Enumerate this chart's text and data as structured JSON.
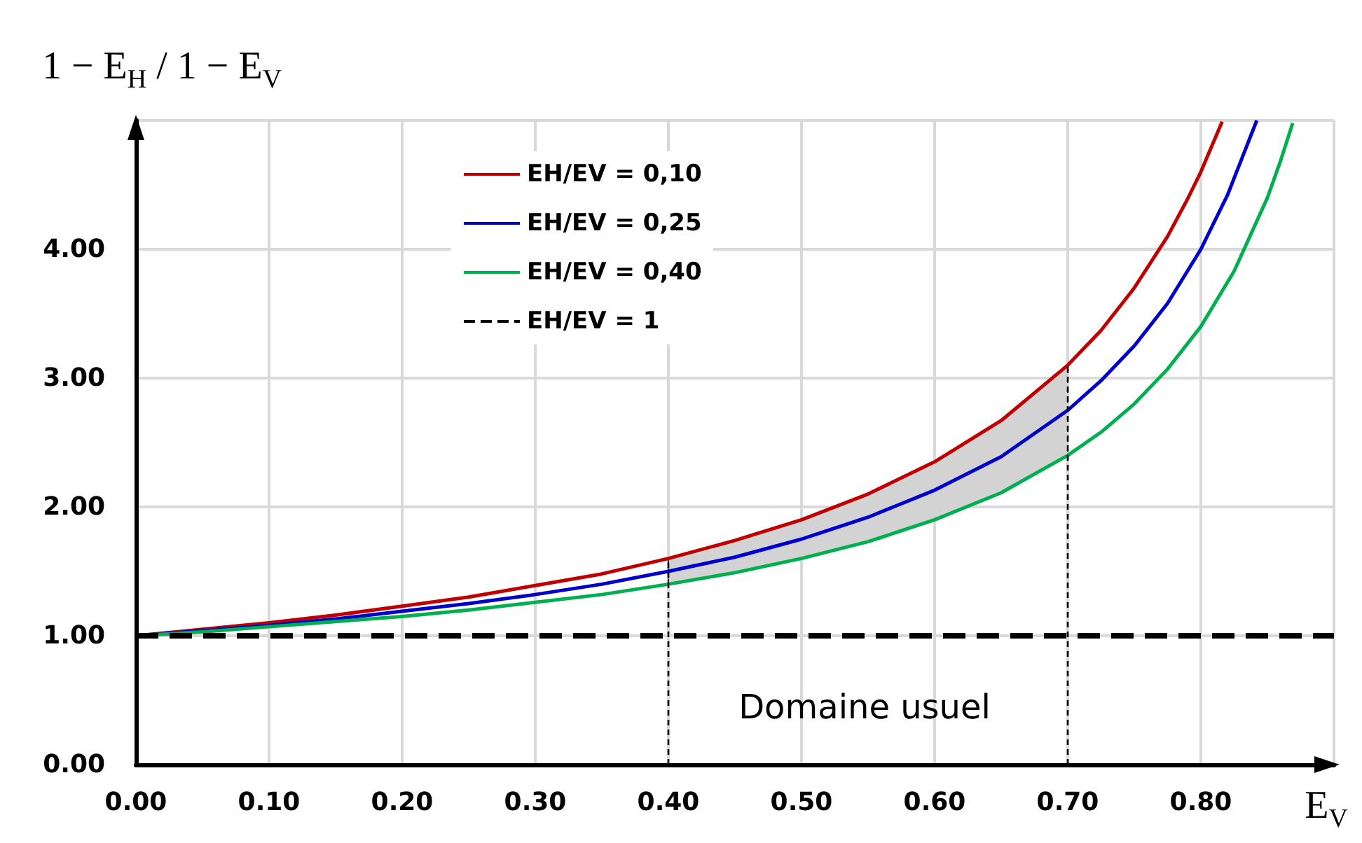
{
  "chart_data": {
    "type": "line",
    "xlabel": "E$_{V}$",
    "ylabel": "1 − E$_{H}$ / 1 − E$_{V}$",
    "xlim": [
      0,
      0.9
    ],
    "ylim": [
      0,
      5
    ],
    "xticks": [
      {
        "value": 0,
        "label": "0.00"
      },
      {
        "value": 0.1,
        "label": "0.10"
      },
      {
        "value": 0.2,
        "label": "0.20"
      },
      {
        "value": 0.3,
        "label": "0.30"
      },
      {
        "value": 0.4,
        "label": "0.40"
      },
      {
        "value": 0.5,
        "label": "0.50"
      },
      {
        "value": 0.6,
        "label": "0.60"
      },
      {
        "value": 0.7,
        "label": "0.70"
      },
      {
        "value": 0.8,
        "label": "0.80"
      },
      {
        "value": 0.9,
        "label": null
      }
    ],
    "yticks": [
      {
        "value": 0,
        "label": "0.00"
      },
      {
        "value": 1,
        "label": "1.00"
      },
      {
        "value": 2,
        "label": "2.00"
      },
      {
        "value": 3,
        "label": "3.00"
      },
      {
        "value": 4,
        "label": "4.00"
      },
      {
        "value": 5,
        "label": null
      }
    ],
    "grid": true,
    "legend": "top left",
    "marker": "none",
    "series": [
      {
        "name": "EH/EV = 0,10",
        "color": "#c00000",
        "x": [
          0,
          0.05,
          0.1,
          0.15,
          0.2,
          0.25,
          0.3,
          0.35,
          0.4,
          0.45,
          0.5,
          0.55,
          0.6,
          0.65,
          0.7,
          0.725,
          0.75,
          0.775,
          0.79,
          0.8,
          0.816
        ],
        "values": [
          1,
          1.05,
          1.1,
          1.16,
          1.23,
          1.3,
          1.39,
          1.48,
          1.6,
          1.74,
          1.9,
          2.1,
          2.35,
          2.67,
          3.1,
          3.37,
          3.7,
          4.1,
          4.39,
          4.6,
          4.99
        ]
      },
      {
        "name": "EH/EV = 0,25",
        "color": "#0000cc",
        "x": [
          0,
          0.05,
          0.1,
          0.15,
          0.2,
          0.25,
          0.3,
          0.35,
          0.4,
          0.45,
          0.5,
          0.55,
          0.6,
          0.65,
          0.7,
          0.725,
          0.75,
          0.775,
          0.8,
          0.82,
          0.842
        ],
        "values": [
          1,
          1.04,
          1.08,
          1.13,
          1.19,
          1.25,
          1.32,
          1.4,
          1.5,
          1.61,
          1.75,
          1.92,
          2.13,
          2.39,
          2.75,
          2.98,
          3.25,
          3.58,
          4,
          4.42,
          5
        ],
        "lower": [
          null,
          null,
          null,
          null,
          null,
          null,
          null,
          null,
          1.4,
          1.49,
          1.6,
          1.73,
          1.9,
          2.11,
          2.4,
          null,
          null,
          null,
          null,
          null,
          null
        ],
        "upper": [
          null,
          null,
          null,
          null,
          null,
          null,
          null,
          null,
          1.6,
          1.74,
          1.9,
          2.1,
          2.35,
          2.67,
          3.1,
          null,
          null,
          null,
          null,
          null,
          null
        ]
      },
      {
        "name": "EH/EV = 0,40",
        "color": "#00b050",
        "x": [
          0,
          0.05,
          0.1,
          0.15,
          0.2,
          0.25,
          0.3,
          0.35,
          0.4,
          0.45,
          0.5,
          0.55,
          0.6,
          0.65,
          0.7,
          0.725,
          0.75,
          0.775,
          0.8,
          0.825,
          0.85,
          0.86,
          0.869
        ],
        "values": [
          1,
          1.03,
          1.07,
          1.11,
          1.15,
          1.2,
          1.26,
          1.32,
          1.4,
          1.49,
          1.6,
          1.73,
          1.9,
          2.11,
          2.4,
          2.58,
          2.8,
          3.07,
          3.4,
          3.83,
          4.4,
          4.69,
          4.98
        ]
      },
      {
        "name": "EH/EV = 1",
        "color": "#000000",
        "line_style": "dashed",
        "x": [
          0,
          0.9
        ],
        "values": [
          1,
          1
        ]
      }
    ],
    "ref_lines": [
      {
        "axis": "x",
        "value": 0.4,
        "color": "#000000",
        "line_style": "dashed"
      },
      {
        "axis": "x",
        "value": 0.7,
        "color": "#000000",
        "line_style": "dashed"
      }
    ],
    "annotations": [
      "Domaine usuel"
    ]
  }
}
